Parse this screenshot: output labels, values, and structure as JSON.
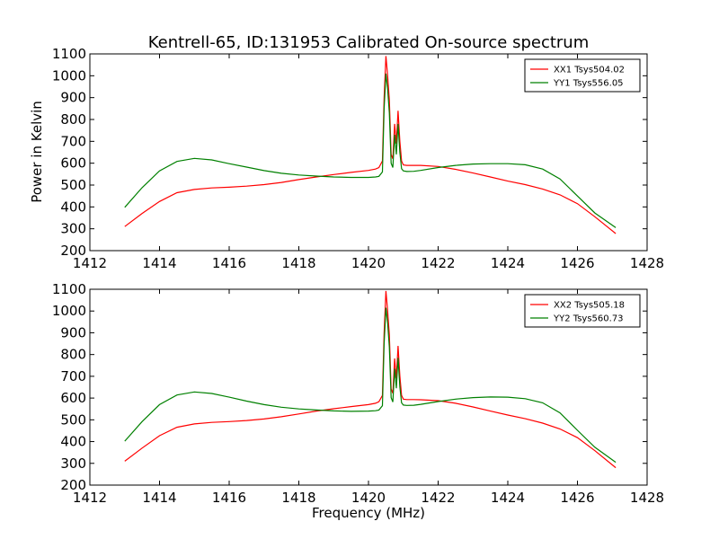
{
  "chart_data": {
    "type": "line",
    "title": "Kentrell-65, ID:131953 Calibrated On-source spectrum",
    "xlabel": "Frequency (MHz)",
    "ylabel": "Power in Kelvin",
    "xlim": [
      1412,
      1428
    ],
    "ylim": [
      200,
      1100
    ],
    "xticks": [
      1412,
      1414,
      1416,
      1418,
      1420,
      1422,
      1424,
      1426,
      1428
    ],
    "yticks": [
      200,
      300,
      400,
      500,
      600,
      700,
      800,
      900,
      1000,
      1100
    ],
    "grid": false,
    "legend_position": "top-right",
    "colors": {
      "red": "#ff0000",
      "green": "#008000"
    },
    "panels": [
      {
        "series": [
          {
            "name": "XX1 Tsys504.02",
            "color": "#ff0000",
            "x": [
              1413.0,
              1413.5,
              1414.0,
              1414.5,
              1415.0,
              1415.5,
              1416.0,
              1416.5,
              1417.0,
              1417.5,
              1418.0,
              1418.5,
              1419.0,
              1419.5,
              1420.0,
              1420.2,
              1420.3,
              1420.4,
              1420.45,
              1420.5,
              1420.55,
              1420.6,
              1420.65,
              1420.7,
              1420.75,
              1420.8,
              1420.85,
              1420.9,
              1420.95,
              1421.0,
              1421.1,
              1421.3,
              1421.5,
              1422.0,
              1422.5,
              1423.0,
              1423.5,
              1424.0,
              1424.5,
              1425.0,
              1425.5,
              1426.0,
              1426.5,
              1427.1
            ],
            "y": [
              310,
              370,
              425,
              465,
              480,
              487,
              490,
              495,
              502,
              512,
              525,
              537,
              548,
              558,
              567,
              573,
              580,
              610,
              900,
              1090,
              1000,
              890,
              640,
              620,
              780,
              690,
              840,
              700,
              610,
              592,
              590,
              590,
              590,
              585,
              572,
              555,
              537,
              518,
              502,
              482,
              455,
              415,
              355,
              278
            ]
          },
          {
            "name": "YY1 Tsys556.05",
            "color": "#008000",
            "x": [
              1413.0,
              1413.5,
              1414.0,
              1414.5,
              1415.0,
              1415.5,
              1416.0,
              1416.5,
              1417.0,
              1417.5,
              1418.0,
              1418.5,
              1419.0,
              1419.5,
              1420.0,
              1420.2,
              1420.3,
              1420.4,
              1420.45,
              1420.5,
              1420.55,
              1420.6,
              1420.65,
              1420.7,
              1420.75,
              1420.8,
              1420.85,
              1420.9,
              1420.95,
              1421.0,
              1421.1,
              1421.3,
              1421.5,
              1422.0,
              1422.5,
              1423.0,
              1423.5,
              1424.0,
              1424.5,
              1425.0,
              1425.5,
              1426.0,
              1426.5,
              1427.1
            ],
            "y": [
              398,
              488,
              565,
              608,
              622,
              615,
              598,
              582,
              566,
              554,
              546,
              541,
              537,
              535,
              535,
              537,
              540,
              560,
              850,
              1010,
              940,
              830,
              600,
              580,
              730,
              640,
              780,
              650,
              575,
              565,
              562,
              563,
              567,
              580,
              590,
              596,
              598,
              598,
              593,
              573,
              528,
              450,
              372,
              305
            ]
          }
        ]
      },
      {
        "series": [
          {
            "name": "XX2 Tsys505.18",
            "color": "#ff0000",
            "x": [
              1413.0,
              1413.5,
              1414.0,
              1414.5,
              1415.0,
              1415.5,
              1416.0,
              1416.5,
              1417.0,
              1417.5,
              1418.0,
              1418.5,
              1419.0,
              1419.5,
              1420.0,
              1420.2,
              1420.3,
              1420.4,
              1420.45,
              1420.5,
              1420.55,
              1420.6,
              1420.65,
              1420.7,
              1420.75,
              1420.8,
              1420.85,
              1420.9,
              1420.95,
              1421.0,
              1421.1,
              1421.3,
              1421.5,
              1422.0,
              1422.5,
              1423.0,
              1423.5,
              1424.0,
              1424.5,
              1425.0,
              1425.5,
              1426.0,
              1426.5,
              1427.1
            ],
            "y": [
              310,
              370,
              427,
              466,
              481,
              488,
              492,
              497,
              504,
              514,
              527,
              540,
              551,
              561,
              570,
              576,
              583,
              612,
              900,
              1092,
              1000,
              892,
              642,
              622,
              782,
              690,
              840,
              702,
              612,
              595,
              593,
              593,
              592,
              588,
              576,
              559,
              540,
              522,
              505,
              485,
              458,
              418,
              358,
              280
            ]
          },
          {
            "name": "YY2 Tsys560.73",
            "color": "#008000",
            "x": [
              1413.0,
              1413.5,
              1414.0,
              1414.5,
              1415.0,
              1415.5,
              1416.0,
              1416.5,
              1417.0,
              1417.5,
              1418.0,
              1418.5,
              1419.0,
              1419.5,
              1420.0,
              1420.2,
              1420.3,
              1420.4,
              1420.45,
              1420.5,
              1420.55,
              1420.6,
              1420.65,
              1420.7,
              1420.75,
              1420.8,
              1420.85,
              1420.9,
              1420.95,
              1421.0,
              1421.1,
              1421.3,
              1421.5,
              1422.0,
              1422.5,
              1423.0,
              1423.5,
              1424.0,
              1424.5,
              1425.0,
              1425.5,
              1426.0,
              1426.5,
              1427.1
            ],
            "y": [
              402,
              492,
              570,
              614,
              628,
              621,
              604,
              586,
              570,
              558,
              550,
              545,
              541,
              539,
              540,
              542,
              545,
              565,
              850,
              1015,
              945,
              835,
              602,
              582,
              735,
              645,
              785,
              652,
              578,
              568,
              566,
              567,
              571,
              584,
              595,
              602,
              605,
              604,
              597,
              578,
              532,
              452,
              374,
              305
            ]
          }
        ]
      }
    ]
  }
}
